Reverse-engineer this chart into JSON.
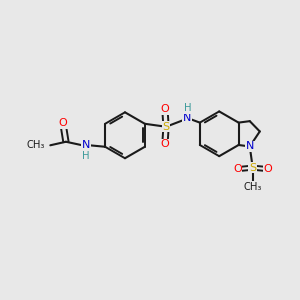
{
  "background_color": "#e8e8e8",
  "bond_color": "#1a1a1a",
  "atom_colors": {
    "O": "#ff0000",
    "N": "#0000cd",
    "S": "#ccaa00",
    "H": "#3a9a9a",
    "C": "#1a1a1a"
  },
  "figsize": [
    3.0,
    3.0
  ],
  "dpi": 100
}
